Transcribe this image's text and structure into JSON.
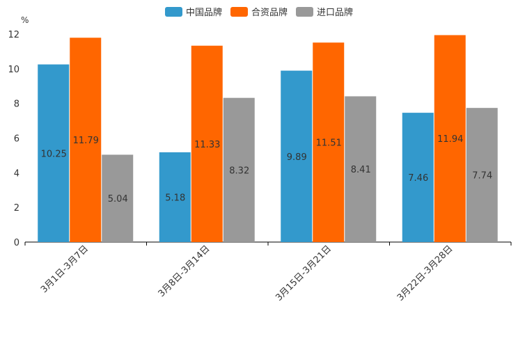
{
  "chart_data": {
    "type": "bar",
    "ylabel": "%",
    "ylim": [
      0,
      12
    ],
    "yticks": [
      "0",
      "2",
      "4",
      "6",
      "8",
      "10",
      "12"
    ],
    "categories": [
      "3月1日-3月7日",
      "3月8日-3月14日",
      "3月15日-3月21日",
      "3月22日-3月28日"
    ],
    "series": [
      {
        "name": "中国品牌",
        "color": "#3399cc",
        "values": [
          10.25,
          5.18,
          9.89,
          7.46
        ],
        "labels": [
          "10.25",
          "5.18",
          "9.89",
          "7.46"
        ]
      },
      {
        "name": "合资品牌",
        "color": "#ff6600",
        "values": [
          11.79,
          11.33,
          11.51,
          11.94
        ],
        "labels": [
          "11.79",
          "11.33",
          "11.51",
          "11.94"
        ]
      },
      {
        "name": "进口品牌",
        "color": "#999999",
        "values": [
          5.04,
          8.32,
          8.41,
          7.74
        ],
        "labels": [
          "5.04",
          "8.32",
          "8.41",
          "7.74"
        ]
      }
    ],
    "legend_position": "top-center",
    "grid": false
  }
}
